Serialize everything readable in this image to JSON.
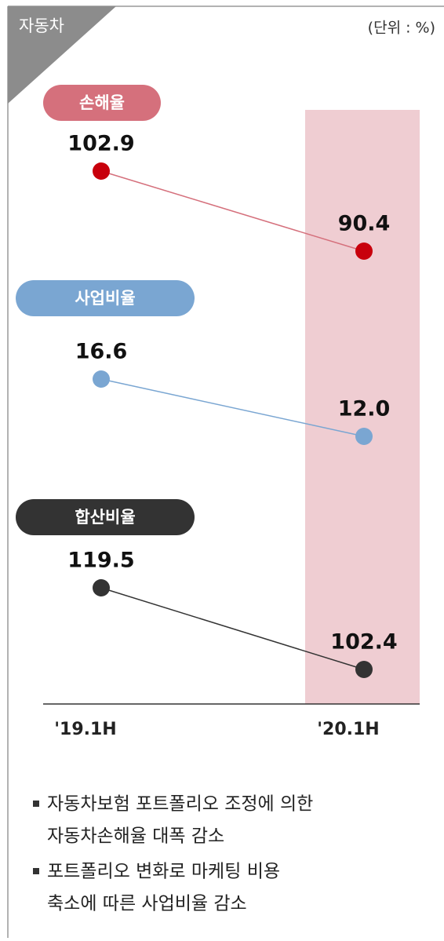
{
  "tag": "자동차",
  "unit": "(단위 : %)",
  "chart_data": {
    "type": "line",
    "categories": [
      "'19.1H",
      "'20.1H"
    ],
    "highlight_color": "#efcdd2",
    "series": [
      {
        "name": "손해율",
        "color": "#d5707c",
        "point_color": "#c8000c",
        "values": [
          102.9,
          90.4
        ]
      },
      {
        "name": "사업비율",
        "color": "#7aa6d2",
        "point_color": "#7aa6d2",
        "values": [
          16.6,
          12
        ],
        "value_labels": [
          "16.6",
          "12.0"
        ]
      },
      {
        "name": "합산비율",
        "color": "#333333",
        "point_color": "#333333",
        "values": [
          119.5,
          102.4
        ]
      }
    ]
  },
  "notes": [
    [
      "자동차보험 포트폴리오 조정에 의한",
      "자동차손해율 대폭 감소"
    ],
    [
      "포트폴리오 변화로 마케팅 비용",
      "축소에 따른 사업비율 감소"
    ]
  ]
}
